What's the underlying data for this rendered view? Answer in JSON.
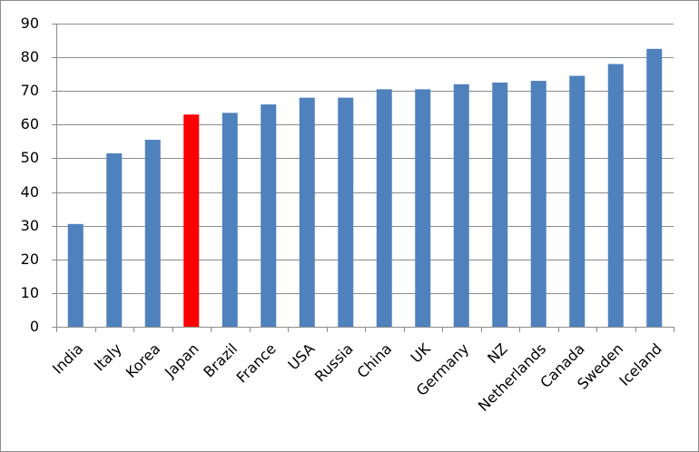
{
  "chart_data": {
    "type": "bar",
    "categories": [
      "India",
      "Italy",
      "Korea",
      "Japan",
      "Brazil",
      "France",
      "USA",
      "Russia",
      "China",
      "UK",
      "Germany",
      "NZ",
      "Netherlands",
      "Canada",
      "Sweden",
      "Iceland"
    ],
    "values": [
      30.5,
      51.5,
      55.5,
      63,
      63.5,
      66,
      68,
      68,
      70.5,
      70.5,
      72,
      72.5,
      73,
      74.5,
      78,
      82.5
    ],
    "colors": [
      "#4f81bd",
      "#4f81bd",
      "#4f81bd",
      "#ff0000",
      "#4f81bd",
      "#4f81bd",
      "#4f81bd",
      "#4f81bd",
      "#4f81bd",
      "#4f81bd",
      "#4f81bd",
      "#4f81bd",
      "#4f81bd",
      "#4f81bd",
      "#4f81bd",
      "#4f81bd"
    ],
    "ylim": [
      0,
      90
    ],
    "yticks": [
      0,
      10,
      20,
      30,
      40,
      50,
      60,
      70,
      80,
      90
    ],
    "grid": true
  }
}
